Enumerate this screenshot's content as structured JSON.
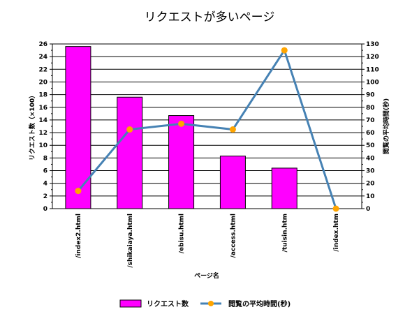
{
  "chart_data": {
    "type": "bar",
    "title": "リクエストが多いページ",
    "xlabel": "ページ名",
    "categories": [
      "/index2.html",
      "/shikaiaya.html",
      "/ebisu.html",
      "/access.html",
      "/tuisin.htm",
      "/index.htm"
    ],
    "series": [
      {
        "name": "リクエスト数",
        "type": "bar",
        "axis": "left",
        "color": "#ff00ff",
        "values": [
          25.6,
          17.6,
          14.7,
          8.3,
          6.4,
          0
        ]
      },
      {
        "name": "閲覧の平均時間(秒)",
        "type": "line",
        "axis": "right",
        "color": "#4682b4",
        "marker_color": "#ffa500",
        "values": [
          14,
          62.5,
          67,
          62.5,
          125,
          0
        ]
      }
    ],
    "y_left": {
      "label": "リクエスト数（×100）",
      "min": 0,
      "max": 26,
      "ticks": [
        0,
        2,
        4,
        6,
        8,
        10,
        12,
        14,
        16,
        18,
        20,
        22,
        24,
        26
      ]
    },
    "y_right": {
      "label": "閲覧の平均時間(秒)",
      "min": 0,
      "max": 130,
      "ticks": [
        0,
        10,
        20,
        30,
        40,
        50,
        60,
        70,
        80,
        90,
        100,
        110,
        120,
        130
      ]
    },
    "grid": true,
    "legend_position": "bottom"
  }
}
